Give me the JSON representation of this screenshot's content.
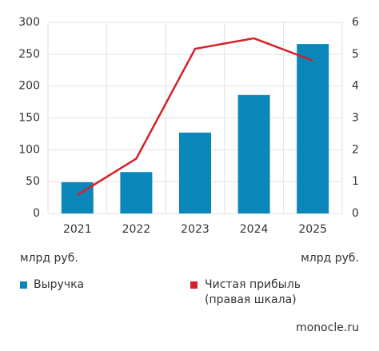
{
  "chart_data": {
    "type": "bar",
    "categories": [
      "2021",
      "2022",
      "2023",
      "2024",
      "2025"
    ],
    "series": [
      {
        "name": "Выручка",
        "type": "bar",
        "color": "#0a86b8",
        "values": [
          49,
          65,
          127,
          186,
          266
        ]
      },
      {
        "name": "Чистая прибыль\n(правая шкала)",
        "type": "line",
        "axis": "y2",
        "color": "#d6202a",
        "values": [
          0.58,
          1.72,
          5.17,
          5.5,
          4.8
        ]
      }
    ],
    "ylim": [
      0,
      300
    ],
    "yticks": [
      0,
      50,
      100,
      150,
      200,
      250,
      300
    ],
    "y2lim": [
      0,
      6
    ],
    "y2ticks": [
      0,
      1,
      2,
      3,
      4,
      5,
      6
    ],
    "y_unit": "млрд руб.",
    "y2_unit": "млрд руб.",
    "grid": true,
    "source": "monocle.ru"
  }
}
